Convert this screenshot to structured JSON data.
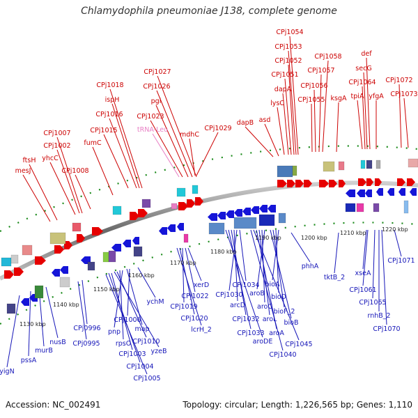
{
  "title": "Chlamydophila pneumoniae J138, complete genome",
  "accession": "Accession: NC_002491",
  "summary": "Topology: circular; Length: 1,226,565 bp; Genes: 1,110",
  "colors": {
    "forward_gene": "#e60000",
    "reverse_gene": "#1515d8",
    "trna": "#e87fc4",
    "backbone": "#808080",
    "dots": "#1a8a1a"
  },
  "ticks": [
    "1130 kbp",
    "1140 kbp",
    "1150 kbp",
    "1160 kbp",
    "1170 kbp",
    "1180 kbp",
    "1190 kbp",
    "1200 kbp",
    "1210 kbp",
    "1220 kbp"
  ],
  "top_labels": [
    {
      "text": "CPj1054",
      "color": "#cc0000"
    },
    {
      "text": "CPj1053",
      "color": "#cc0000"
    },
    {
      "text": "CPj1052",
      "color": "#cc0000"
    },
    {
      "text": "CPj1051",
      "color": "#cc0000"
    },
    {
      "text": "dapA",
      "color": "#cc0000"
    },
    {
      "text": "lysC",
      "color": "#cc0000"
    },
    {
      "text": "asd",
      "color": "#cc0000"
    },
    {
      "text": "dapB",
      "color": "#cc0000"
    },
    {
      "text": "CPj1058",
      "color": "#cc0000"
    },
    {
      "text": "CPj1057",
      "color": "#cc0000"
    },
    {
      "text": "CPj1056",
      "color": "#cc0000"
    },
    {
      "text": "CPj1055",
      "color": "#cc0000"
    },
    {
      "text": "ksgA",
      "color": "#cc0000"
    },
    {
      "text": "def",
      "color": "#cc0000"
    },
    {
      "text": "secG",
      "color": "#cc0000"
    },
    {
      "text": "CPj1064",
      "color": "#cc0000"
    },
    {
      "text": "tpiA",
      "color": "#cc0000"
    },
    {
      "text": "yfgA",
      "color": "#cc0000"
    },
    {
      "text": "CPj1072",
      "color": "#cc0000"
    },
    {
      "text": "CPj1073",
      "color": "#cc0000"
    },
    {
      "text": "CPj1027",
      "color": "#cc0000"
    },
    {
      "text": "CPj1026",
      "color": "#cc0000"
    },
    {
      "text": "pgi",
      "color": "#cc0000"
    },
    {
      "text": "CPj1023",
      "color": "#cc0000"
    },
    {
      "text": "tRNA-Leu",
      "color": "#e87fc4"
    },
    {
      "text": "mdhC",
      "color": "#cc0000"
    },
    {
      "text": "CPj1029",
      "color": "#cc0000"
    },
    {
      "text": "CPj1018",
      "color": "#cc0000"
    },
    {
      "text": "ispH",
      "color": "#cc0000"
    },
    {
      "text": "CPj1016",
      "color": "#cc0000"
    },
    {
      "text": "CPj1015",
      "color": "#cc0000"
    },
    {
      "text": "fumC",
      "color": "#cc0000"
    },
    {
      "text": "CPj1007",
      "color": "#cc0000"
    },
    {
      "text": "CPj1002",
      "color": "#cc0000"
    },
    {
      "text": "yhcC",
      "color": "#cc0000"
    },
    {
      "text": "ftsH",
      "color": "#cc0000"
    },
    {
      "text": "mesJ",
      "color": "#cc0000"
    },
    {
      "text": "CPj1008",
      "color": "#cc0000"
    }
  ],
  "bottom_labels": [
    {
      "text": "CPj1071",
      "color": "#1515b8"
    },
    {
      "text": "tktB_2",
      "color": "#1515b8"
    },
    {
      "text": "xseA",
      "color": "#1515b8"
    },
    {
      "text": "CPj1061",
      "color": "#1515b8"
    },
    {
      "text": "CPj1065",
      "color": "#1515b8"
    },
    {
      "text": "rnhB_2",
      "color": "#1515b8"
    },
    {
      "text": "CPj1070",
      "color": "#1515b8"
    },
    {
      "text": "phhA",
      "color": "#1515b8"
    },
    {
      "text": "bioA",
      "color": "#1515b8"
    },
    {
      "text": "bioD",
      "color": "#1515b8"
    },
    {
      "text": "bioF_2",
      "color": "#1515b8"
    },
    {
      "text": "bioB",
      "color": "#1515b8"
    },
    {
      "text": "aroB",
      "color": "#1515b8"
    },
    {
      "text": "aroC",
      "color": "#1515b8"
    },
    {
      "text": "aroL",
      "color": "#1515b8"
    },
    {
      "text": "aroA",
      "color": "#1515b8"
    },
    {
      "text": "CPj1045",
      "color": "#1515b8"
    },
    {
      "text": "CPj1040",
      "color": "#1515b8"
    },
    {
      "text": "CPj1034",
      "color": "#1515b8"
    },
    {
      "text": "CPj1030",
      "color": "#1515b8"
    },
    {
      "text": "arcD",
      "color": "#1515b8"
    },
    {
      "text": "CPj1032",
      "color": "#1515b8"
    },
    {
      "text": "CPj1033",
      "color": "#1515b8"
    },
    {
      "text": "aroDE",
      "color": "#1515b8"
    },
    {
      "text": "xerD",
      "color": "#1515b8"
    },
    {
      "text": "CPj1022",
      "color": "#1515b8"
    },
    {
      "text": "CPj1019",
      "color": "#1515b8"
    },
    {
      "text": "CPj1020",
      "color": "#1515b8"
    },
    {
      "text": "lcrH_2",
      "color": "#1515b8"
    },
    {
      "text": "ychM",
      "color": "#1515b8"
    },
    {
      "text": "CPj1006",
      "color": "#1515b8"
    },
    {
      "text": "map",
      "color": "#1515b8"
    },
    {
      "text": "pnp",
      "color": "#1515b8"
    },
    {
      "text": "rpsO",
      "color": "#1515b8"
    },
    {
      "text": "CPj1010",
      "color": "#1515b8"
    },
    {
      "text": "yzeB",
      "color": "#1515b8"
    },
    {
      "text": "CPj1003",
      "color": "#1515b8"
    },
    {
      "text": "CPj1004",
      "color": "#1515b8"
    },
    {
      "text": "CPj1005",
      "color": "#1515b8"
    },
    {
      "text": "CPj0996",
      "color": "#1515b8"
    },
    {
      "text": "CPj0995",
      "color": "#1515b8"
    },
    {
      "text": "nusB",
      "color": "#1515b8"
    },
    {
      "text": "murB",
      "color": "#1515b8"
    },
    {
      "text": "pssA",
      "color": "#1515b8"
    },
    {
      "text": "yigN",
      "color": "#1515b8"
    }
  ]
}
